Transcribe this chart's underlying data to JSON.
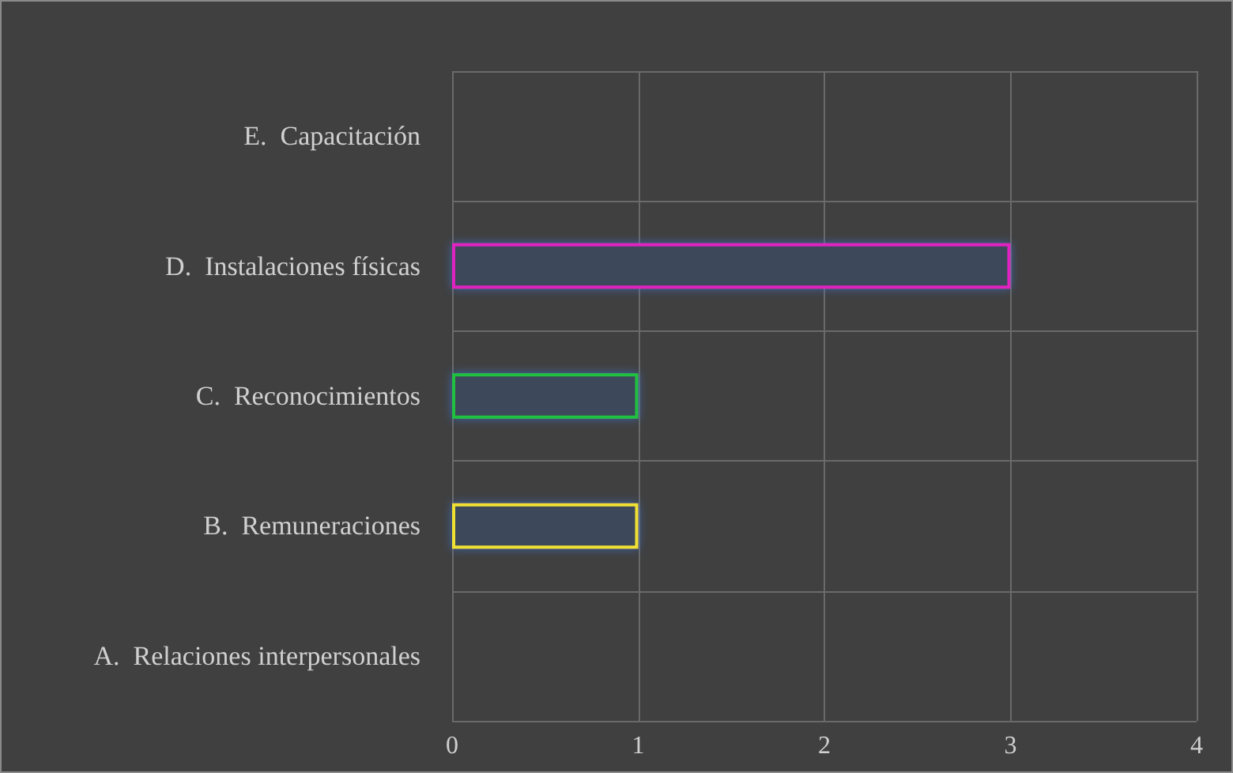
{
  "chart_data": {
    "type": "bar",
    "orientation": "horizontal",
    "categories": [
      "E.  Capacitación",
      "D.  Instalaciones físicas",
      "C.  Reconocimientos",
      "B.  Remuneraciones",
      "A.  Relaciones interpersonales"
    ],
    "values": [
      0,
      3,
      1,
      1,
      0
    ],
    "colors": [
      "#7f7f7f",
      "#e020c0",
      "#20c040",
      "#f0e030",
      "#7f7f7f"
    ],
    "xlim": [
      0,
      4
    ],
    "xticks": [
      0,
      1,
      2,
      3,
      4
    ],
    "grid": true
  }
}
